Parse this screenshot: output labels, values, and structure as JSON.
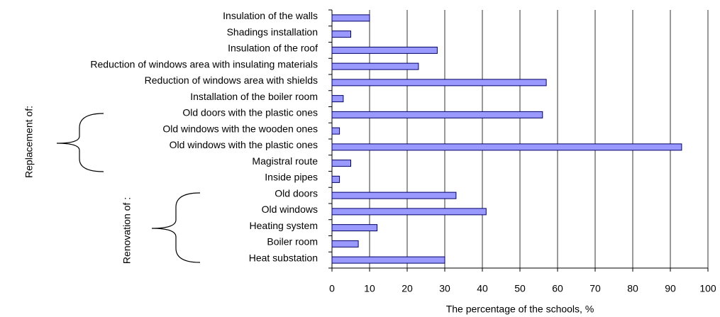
{
  "chart_data": {
    "type": "bar",
    "orientation": "horizontal",
    "x_label": "The percentage of the schools, %",
    "annotations": [
      "Replacement of:",
      "Renovation of :"
    ],
    "categories": [
      "Insulation of the walls",
      "Shadings installation",
      "Insulation of the roof",
      "Reduction of windows area with insulating materials",
      "Reduction of windows area with shields",
      "Installation of the boiler room",
      "Old doors with the plastic ones",
      "Old windows with the wooden ones",
      "Old windows with the plastic ones",
      "Magistral route",
      "Inside pipes",
      "Old doors",
      "Old windows",
      "Heating system",
      "Boiler room",
      "Heat substation"
    ],
    "values": [
      10,
      5,
      28,
      23,
      57,
      3,
      56,
      2,
      93,
      5,
      2,
      33,
      41,
      12,
      7,
      30
    ],
    "color": "#9999ff",
    "xlim": [
      0,
      100
    ],
    "xticks": [
      0,
      10,
      20,
      30,
      40,
      50,
      60,
      70,
      80,
      90,
      100
    ],
    "grid": true
  }
}
